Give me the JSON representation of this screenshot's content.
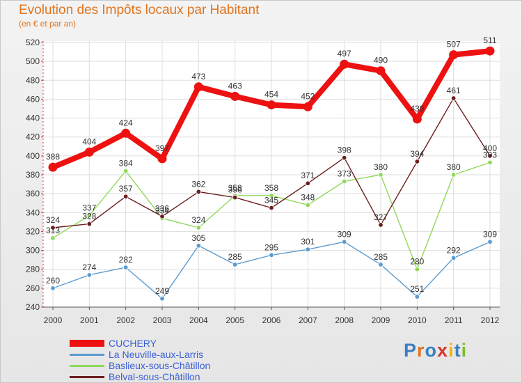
{
  "title": "Evolution des Impôts locaux par Habitant",
  "subtitle": "(en € et par an)",
  "logo": {
    "text": "Proxiti",
    "letter_colors": [
      "#3a7fc4",
      "#e0741d",
      "#3a7fc4",
      "#d9352a",
      "#f0b21b",
      "#3a7fc4",
      "#7cbd2a"
    ]
  },
  "chart_data": {
    "type": "line",
    "x": [
      "2000",
      "2001",
      "2002",
      "2003",
      "2004",
      "2005",
      "2006",
      "2007",
      "2008",
      "2009",
      "2010",
      "2011",
      "2012"
    ],
    "ylim": [
      240,
      520
    ],
    "yticks": [
      240,
      260,
      280,
      300,
      320,
      340,
      360,
      380,
      400,
      420,
      440,
      460,
      480,
      500,
      520
    ],
    "grid": true,
    "legend_position": "bottom-left",
    "series": [
      {
        "name": "CUCHERY",
        "color": "#ee1111",
        "values": [
          388,
          404,
          424,
          397,
          473,
          463,
          454,
          452,
          497,
          490,
          439,
          507,
          511
        ]
      },
      {
        "name": "La Neuville-aux-Larris",
        "color": "#5b9bd0",
        "values": [
          260,
          274,
          282,
          249,
          305,
          285,
          295,
          301,
          309,
          285,
          251,
          292,
          309
        ]
      },
      {
        "name": "Baslieux-sous-Châtillon",
        "color": "#8fd95b",
        "values": [
          313,
          337,
          384,
          334,
          324,
          358,
          358,
          348,
          373,
          380,
          280,
          380,
          393
        ]
      },
      {
        "name": "Belval-sous-Châtillon",
        "color": "#6b1e1e",
        "values": [
          324,
          328,
          357,
          336,
          362,
          356,
          345,
          371,
          398,
          327,
          394,
          461,
          400
        ]
      }
    ]
  }
}
